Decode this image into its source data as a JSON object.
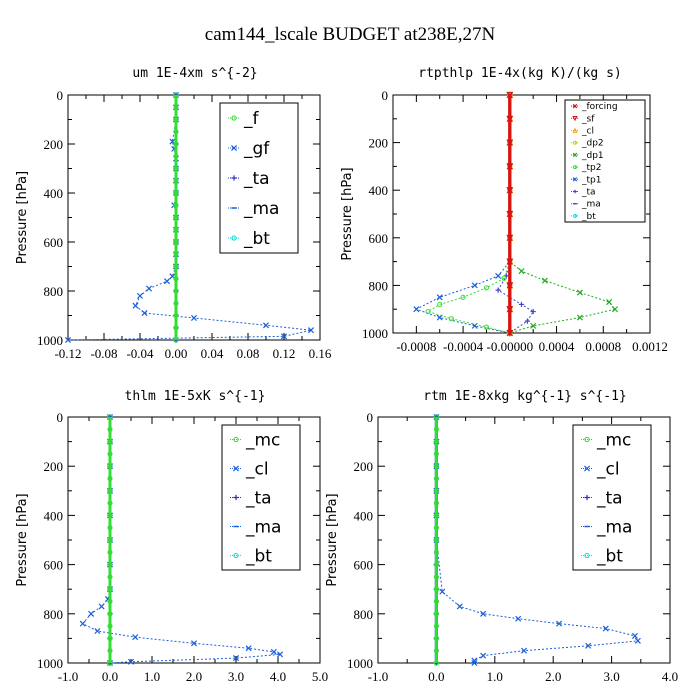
{
  "figure_title": "cam144_lscale  BUDGET at238E,27N",
  "colors": {
    "green": "#33dd33",
    "dkgreen": "#22aa22",
    "blue": "#1c5fd8",
    "navy": "#2b2bd0",
    "cyan": "#00dddd",
    "red": "#dd1111",
    "orange": "#ff9900",
    "yellow": "#cccc00",
    "purple": "#4444cc"
  },
  "chart_data": [
    {
      "type": "line",
      "title": "um  1E-4xm s^{-2}",
      "ylabel": "Pressure [hPa]",
      "xlabel": "",
      "xlim": [
        -0.12,
        0.16
      ],
      "ylim": [
        1000,
        0
      ],
      "xticks": [
        "-0.12",
        "-0.08",
        "-0.04",
        "0.00",
        "0.04",
        "0.08",
        "0.12",
        "0.16"
      ],
      "yticks": [
        "0",
        "200",
        "400",
        "600",
        "800",
        "1000"
      ],
      "legend_size": "large",
      "series": [
        {
          "name": "_f",
          "color": "green",
          "marker": "o",
          "x": [
            0,
            0,
            0,
            0,
            0,
            0,
            0,
            0,
            0,
            0,
            0,
            0,
            0,
            0,
            0,
            0,
            0,
            0,
            0,
            0,
            0
          ],
          "y": [
            0,
            50,
            100,
            150,
            200,
            250,
            300,
            350,
            400,
            450,
            500,
            550,
            600,
            650,
            700,
            750,
            800,
            850,
            900,
            950,
            1000
          ]
        },
        {
          "name": "_gf",
          "color": "blue",
          "marker": "x",
          "x": [
            0,
            0,
            0,
            -0.004,
            -0.002,
            0,
            0,
            0,
            0,
            -0.002,
            0,
            0,
            0,
            0,
            0,
            -0.004,
            -0.01,
            -0.03,
            -0.04,
            -0.045,
            -0.035,
            0.02,
            0.1,
            0.15,
            0.12,
            -0.12
          ],
          "y": [
            0,
            50,
            100,
            190,
            220,
            260,
            300,
            350,
            400,
            450,
            500,
            550,
            600,
            650,
            700,
            740,
            760,
            790,
            820,
            860,
            890,
            910,
            940,
            960,
            985,
            1000
          ]
        },
        {
          "name": "_ta",
          "color": "navy",
          "marker": "+",
          "x": [
            0,
            0,
            0,
            0,
            0,
            0,
            0,
            0,
            0,
            0,
            0,
            0
          ],
          "y": [
            0,
            100,
            200,
            300,
            400,
            500,
            600,
            700,
            800,
            900,
            950,
            1000
          ]
        },
        {
          "name": "_ma",
          "color": "blue",
          "marker": "-",
          "x": [
            0,
            0,
            0,
            0,
            0,
            0,
            0,
            0,
            0,
            0,
            0,
            0
          ],
          "y": [
            0,
            100,
            200,
            300,
            400,
            500,
            600,
            700,
            800,
            900,
            950,
            1000
          ]
        },
        {
          "name": "_bt",
          "color": "cyan",
          "marker": "o",
          "x": [
            0,
            0,
            0,
            0,
            0,
            0,
            0,
            0,
            0,
            0,
            0,
            0
          ],
          "y": [
            0,
            100,
            200,
            300,
            400,
            500,
            600,
            700,
            800,
            900,
            950,
            1000
          ]
        }
      ]
    },
    {
      "type": "line",
      "title": "rtpthlp  1E-4x(kg K)/(kg s)",
      "ylabel": "Pressure [hPa]",
      "xlabel": "",
      "xlim": [
        -0.001,
        0.0012
      ],
      "ylim": [
        1000,
        0
      ],
      "xticks": [
        "-0.0008",
        "-0.0004",
        "-0.00000",
        "0.0004",
        "0.0008",
        "0.0012"
      ],
      "yticks": [
        "0",
        "200",
        "400",
        "600",
        "800",
        "1000"
      ],
      "legend_size": "small",
      "series": [
        {
          "name": "_forcing",
          "color": "red",
          "marker": "x",
          "x": [
            0,
            0,
            0,
            0,
            0,
            0,
            0,
            0,
            0,
            0,
            0
          ],
          "y": [
            0,
            100,
            200,
            300,
            400,
            500,
            600,
            700,
            800,
            900,
            1000
          ]
        },
        {
          "name": "_sf",
          "color": "red",
          "marker": "v",
          "x": [
            0,
            0,
            0,
            0,
            0,
            0,
            0,
            0,
            0,
            0,
            0
          ],
          "y": [
            0,
            100,
            200,
            300,
            400,
            500,
            600,
            700,
            800,
            900,
            1000
          ]
        },
        {
          "name": "_cl",
          "color": "orange",
          "marker": "^",
          "x": [
            0,
            0,
            0,
            0,
            0,
            0,
            0,
            0,
            0,
            0,
            0
          ],
          "y": [
            0,
            100,
            200,
            300,
            400,
            500,
            600,
            700,
            800,
            900,
            1000
          ]
        },
        {
          "name": "_dp2",
          "color": "yellow",
          "marker": "o",
          "x": [
            0,
            0,
            0,
            0,
            0,
            0,
            0,
            0,
            0,
            0,
            0
          ],
          "y": [
            0,
            100,
            200,
            300,
            400,
            500,
            600,
            700,
            800,
            900,
            1000
          ]
        },
        {
          "name": "_dp1",
          "color": "dkgreen",
          "marker": "x",
          "x": [
            0,
            0,
            0,
            0,
            0.0001,
            0.0003,
            0.0006,
            0.00085,
            0.0009,
            0.0006,
            0.0002,
            0
          ],
          "y": [
            0,
            200,
            500,
            700,
            740,
            780,
            830,
            870,
            900,
            935,
            970,
            1000
          ]
        },
        {
          "name": "_tp2",
          "color": "green",
          "marker": "o",
          "x": [
            0,
            0,
            0,
            -5e-05,
            -0.0002,
            -0.0004,
            -0.0006,
            -0.0007,
            -0.0005,
            -0.0002,
            0
          ],
          "y": [
            0,
            300,
            700,
            770,
            810,
            850,
            880,
            910,
            940,
            975,
            1000
          ]
        },
        {
          "name": "_tp1",
          "color": "blue",
          "marker": "x",
          "x": [
            0,
            0,
            0,
            -0.0001,
            -0.0003,
            -0.0006,
            -0.0008,
            -0.0006,
            -0.0003,
            0
          ],
          "y": [
            0,
            300,
            700,
            760,
            800,
            850,
            900,
            935,
            970,
            1000
          ]
        },
        {
          "name": "_ta",
          "color": "purple",
          "marker": "+",
          "x": [
            0,
            0,
            0,
            -3e-05,
            -0.0001,
            0.0001,
            0.0002,
            0.00015,
            0
          ],
          "y": [
            0,
            300,
            700,
            760,
            820,
            880,
            910,
            950,
            1000
          ]
        },
        {
          "name": "_ma",
          "color": "blue",
          "marker": "-",
          "x": [
            0,
            0,
            0,
            0,
            0,
            0
          ],
          "y": [
            0,
            200,
            400,
            600,
            800,
            1000
          ]
        },
        {
          "name": "_bt",
          "color": "cyan",
          "marker": "o",
          "x": [
            0,
            0,
            0,
            0,
            0,
            0
          ],
          "y": [
            0,
            200,
            400,
            600,
            800,
            1000
          ]
        }
      ]
    },
    {
      "type": "line",
      "title": "thlm  1E-5xK s^{-1}",
      "ylabel": "Pressure [hPa]",
      "xlabel": "",
      "xlim": [
        -1.0,
        5.0
      ],
      "ylim": [
        1000,
        0
      ],
      "xticks": [
        "-1.0",
        "0.0",
        "1.0",
        "2.0",
        "3.0",
        "4.0",
        "5.0"
      ],
      "yticks": [
        "0",
        "200",
        "400",
        "600",
        "800",
        "1000"
      ],
      "legend_size": "large",
      "series": [
        {
          "name": "_mc",
          "color": "green",
          "marker": "o",
          "x": [
            0,
            0,
            0,
            0,
            0,
            0,
            0,
            0,
            0,
            0,
            0,
            0,
            0,
            0,
            0,
            0,
            0,
            0,
            0,
            0,
            0
          ],
          "y": [
            0,
            50,
            100,
            150,
            200,
            250,
            300,
            350,
            400,
            450,
            500,
            550,
            600,
            650,
            700,
            750,
            800,
            850,
            900,
            950,
            1000
          ]
        },
        {
          "name": "_cl",
          "color": "blue",
          "marker": "x",
          "x": [
            0,
            0,
            0,
            0,
            0,
            0,
            0,
            0,
            -0.05,
            -0.2,
            -0.45,
            -0.65,
            -0.3,
            0.6,
            2.0,
            3.3,
            3.9,
            4.05,
            3.0,
            0.5,
            0
          ],
          "y": [
            0,
            100,
            200,
            300,
            400,
            500,
            600,
            700,
            740,
            770,
            800,
            840,
            870,
            895,
            920,
            940,
            955,
            965,
            980,
            995,
            1000
          ]
        },
        {
          "name": "_ta",
          "color": "navy",
          "marker": "+",
          "x": [
            0,
            0,
            0,
            0,
            0,
            0,
            0,
            0,
            0,
            0,
            0
          ],
          "y": [
            0,
            100,
            200,
            300,
            400,
            500,
            600,
            700,
            800,
            900,
            1000
          ]
        },
        {
          "name": "_ma",
          "color": "blue",
          "marker": "-",
          "x": [
            0,
            0,
            0,
            0,
            0,
            0,
            0,
            0,
            0,
            0,
            0
          ],
          "y": [
            0,
            100,
            200,
            300,
            400,
            500,
            600,
            700,
            800,
            900,
            1000
          ]
        },
        {
          "name": "_bt",
          "color": "cyan",
          "marker": "o",
          "x": [
            0,
            0,
            0,
            0,
            0,
            0,
            0,
            0,
            0,
            0,
            0
          ],
          "y": [
            0,
            100,
            200,
            300,
            400,
            500,
            600,
            700,
            800,
            900,
            1000
          ]
        }
      ]
    },
    {
      "type": "line",
      "title": "rtm  1E-8xkg kg^{-1} s^{-1}",
      "ylabel": "Pressure [hPa]",
      "xlabel": "",
      "xlim": [
        -1.0,
        4.0
      ],
      "ylim": [
        1000,
        0
      ],
      "xticks": [
        "-1.0",
        "0.0",
        "1.0",
        "2.0",
        "3.0",
        "4.0"
      ],
      "yticks": [
        "0",
        "200",
        "400",
        "600",
        "800",
        "1000"
      ],
      "legend_size": "large",
      "series": [
        {
          "name": "_mc",
          "color": "green",
          "marker": "o",
          "x": [
            0,
            0,
            0,
            0,
            0,
            0,
            0,
            0,
            0,
            0,
            0,
            0,
            0,
            0,
            0,
            0,
            0,
            0,
            0,
            0,
            0
          ],
          "y": [
            0,
            50,
            100,
            150,
            200,
            250,
            300,
            350,
            400,
            450,
            500,
            550,
            600,
            650,
            700,
            750,
            800,
            850,
            900,
            950,
            1000
          ]
        },
        {
          "name": "_cl",
          "color": "blue",
          "marker": "x",
          "x": [
            0,
            0,
            0,
            0,
            0,
            0,
            0.1,
            0.4,
            0.8,
            1.4,
            2.1,
            2.9,
            3.4,
            3.45,
            2.6,
            1.5,
            0.8,
            0.65,
            0.65
          ],
          "y": [
            0,
            100,
            200,
            300,
            400,
            500,
            710,
            770,
            800,
            820,
            840,
            860,
            890,
            910,
            930,
            950,
            970,
            990,
            1000
          ]
        },
        {
          "name": "_ta",
          "color": "navy",
          "marker": "+",
          "x": [
            0,
            0,
            0,
            0,
            0,
            0,
            0,
            0,
            0,
            0,
            0
          ],
          "y": [
            0,
            100,
            200,
            300,
            400,
            500,
            600,
            700,
            800,
            900,
            1000
          ]
        },
        {
          "name": "_ma",
          "color": "blue",
          "marker": "-",
          "x": [
            0,
            0,
            0,
            0,
            0,
            0,
            0,
            0,
            0,
            0,
            0
          ],
          "y": [
            0,
            100,
            200,
            300,
            400,
            500,
            600,
            700,
            800,
            900,
            1000
          ]
        },
        {
          "name": "_bt",
          "color": "cyan",
          "marker": "o",
          "x": [
            0,
            0,
            0,
            0,
            0,
            0,
            0,
            0,
            0,
            0,
            0
          ],
          "y": [
            0,
            100,
            200,
            300,
            400,
            500,
            600,
            700,
            800,
            900,
            1000
          ]
        }
      ]
    }
  ]
}
